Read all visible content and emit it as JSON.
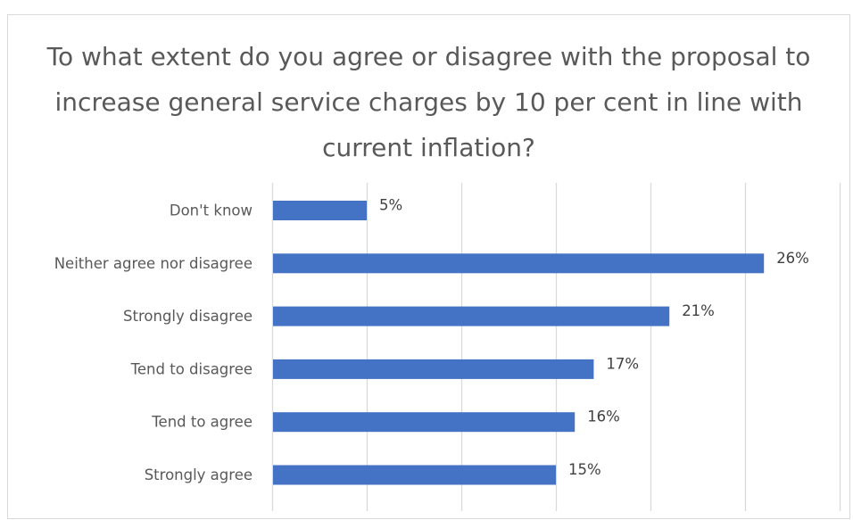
{
  "chart_data": {
    "type": "bar",
    "orientation": "horizontal",
    "title": "To what extent do you agree or disagree with the proposal to increase general service charges by 10 per cent in line with current inflation?",
    "categories": [
      "Don't know",
      "Neither agree nor disagree",
      "Strongly disagree",
      "Tend to disagree",
      "Tend to agree",
      "Strongly agree"
    ],
    "values": [
      5,
      26,
      21,
      17,
      16,
      15
    ],
    "data_labels": [
      "5%",
      "26%",
      "21%",
      "17%",
      "16%",
      "15%"
    ],
    "value_unit": "%",
    "xlim": [
      0,
      30
    ],
    "x_gridline_step": 5,
    "x_axis_tick_labels_shown": false,
    "grid": "vertical",
    "legend": "none",
    "bar_color": "#4472c4"
  }
}
